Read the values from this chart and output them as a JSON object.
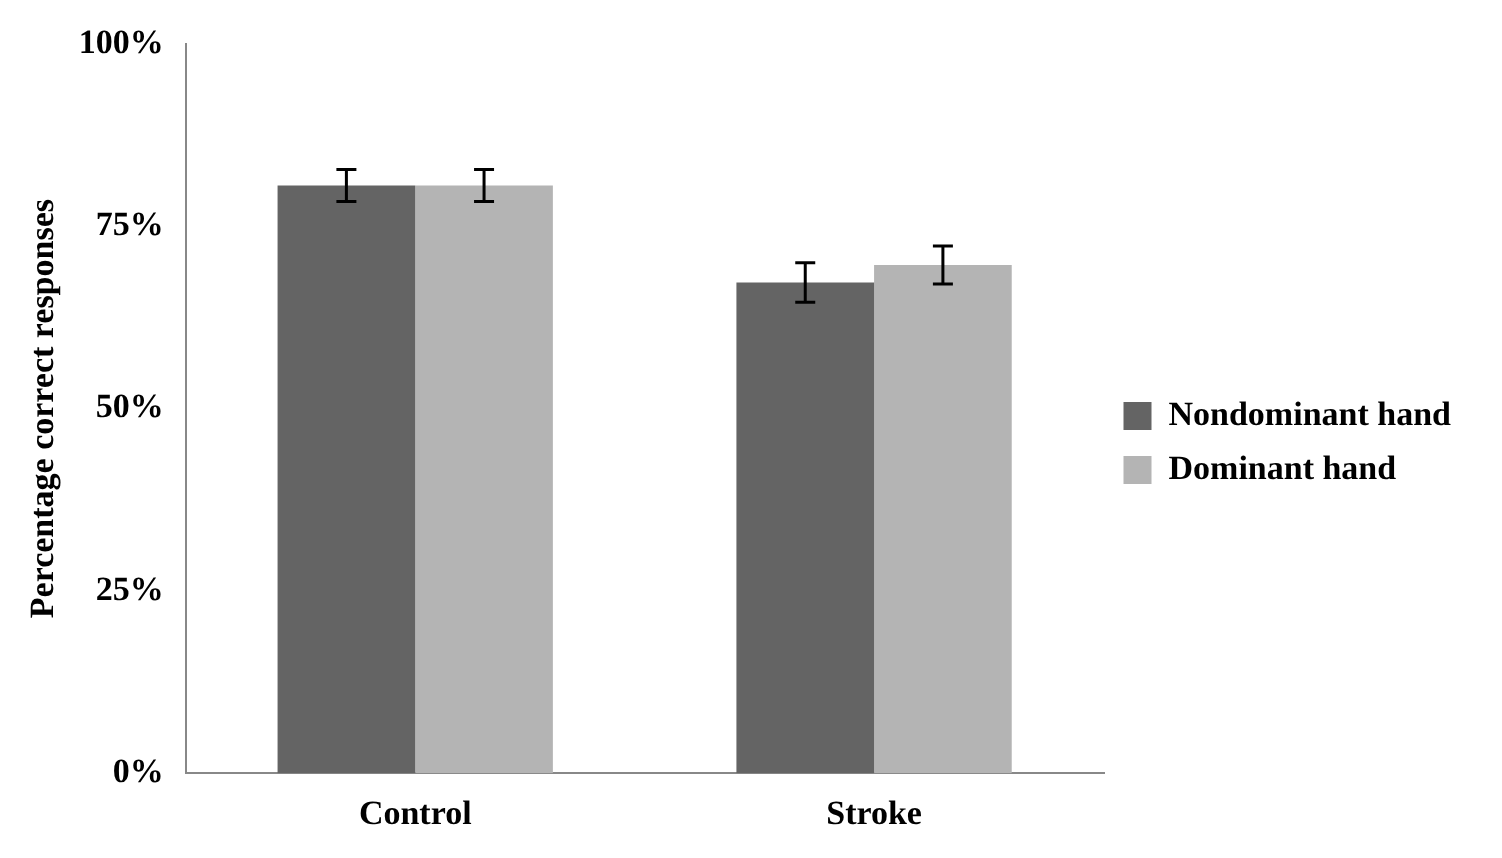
{
  "chart_data": {
    "type": "bar",
    "ylabel": "Percentage correct responses",
    "categories": [
      "Control",
      "Stroke"
    ],
    "series": [
      {
        "name": "Nondominant hand",
        "color": "#646464",
        "values": [
          80.6,
          67.3
        ],
        "errors": [
          2.2,
          2.7
        ]
      },
      {
        "name": "Dominant hand",
        "color": "#b4b4b4",
        "values": [
          80.6,
          69.7
        ],
        "errors": [
          2.2,
          2.6
        ]
      }
    ],
    "ylim": [
      0,
      100
    ],
    "yticks": [
      {
        "value": 0,
        "label": "0%"
      },
      {
        "value": 25,
        "label": "25%"
      },
      {
        "value": 50,
        "label": "50%"
      },
      {
        "value": 75,
        "label": "75%"
      },
      {
        "value": 100,
        "label": "100%"
      }
    ],
    "grid": false,
    "legend": "right"
  }
}
